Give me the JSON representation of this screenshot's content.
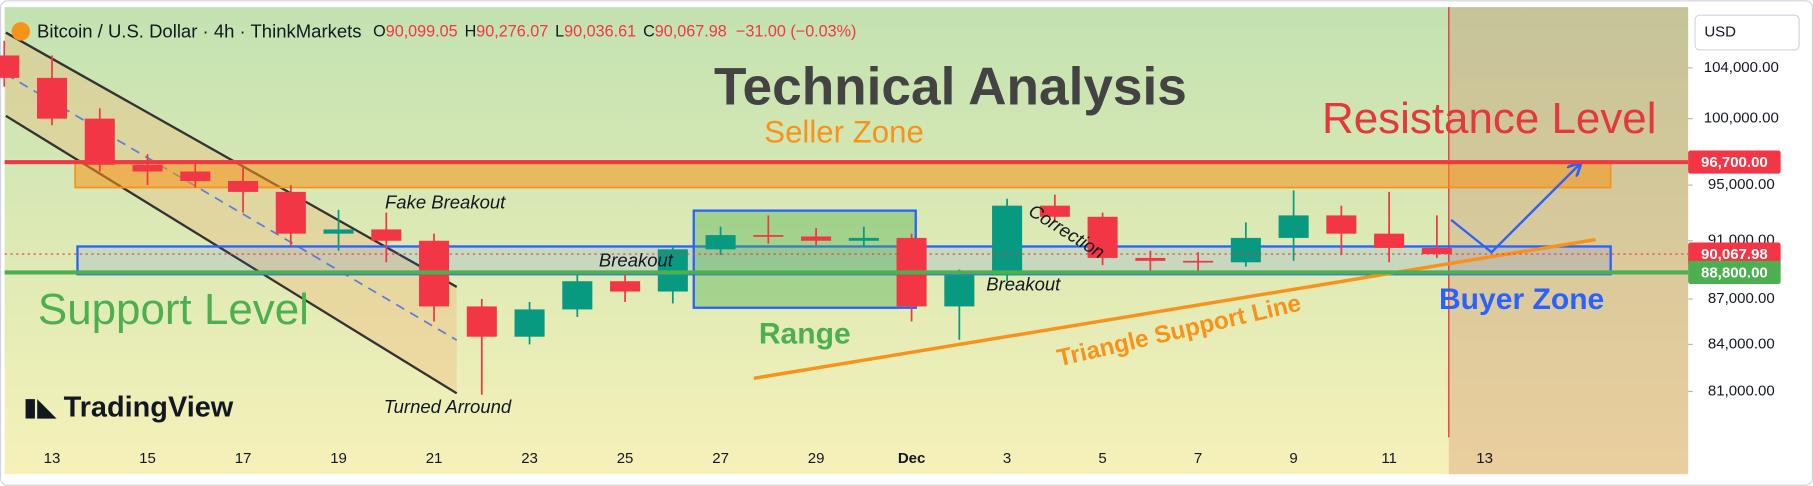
{
  "chart_data": {
    "type": "candlestick",
    "header": {
      "symbol": "Bitcoin / U.S. Dollar · 4h · ThinkMarkets",
      "ohlc": [
        {
          "key": "O",
          "value": "90,099.05"
        },
        {
          "key": "H",
          "value": "90,276.07"
        },
        {
          "key": "L",
          "value": "90,036.61"
        },
        {
          "key": "C",
          "value": "90,067.98"
        }
      ],
      "change": "−31.00 (−0.03%)"
    },
    "currency": "USD",
    "brand": "TradingView",
    "categories": [
      null,
      "13",
      null,
      "15",
      null,
      "17",
      null,
      "19",
      null,
      "21",
      null,
      "23",
      null,
      "25",
      null,
      "27",
      null,
      "29",
      null,
      "Dec",
      null,
      "3",
      null,
      "5",
      null,
      "7",
      null,
      "9",
      null,
      "11",
      null,
      "13",
      null,
      null,
      null,
      null
    ],
    "open": [
      105000,
      103200,
      100000,
      96500,
      96000,
      95300,
      94500,
      91500,
      91800,
      91000,
      86500,
      84500,
      86300,
      88200,
      87500,
      90400,
      91400,
      91300,
      91000,
      91200,
      86500,
      88600,
      93500,
      92700,
      89800,
      89600,
      89500,
      91200,
      92800,
      91500,
      90500,
      null,
      null,
      null,
      null,
      null
    ],
    "high": [
      106200,
      105000,
      100800,
      97300,
      96700,
      96300,
      95000,
      93200,
      93000,
      91500,
      87000,
      86800,
      88800,
      88900,
      90600,
      92000,
      92800,
      91900,
      92000,
      91500,
      89000,
      94000,
      94300,
      93000,
      90300,
      90200,
      92300,
      94600,
      93500,
      94500,
      92800,
      null,
      null,
      null,
      null,
      null
    ],
    "low": [
      102500,
      99500,
      96000,
      95000,
      94800,
      93000,
      90600,
      90300,
      89500,
      85500,
      80800,
      84000,
      85800,
      86800,
      86700,
      90000,
      90800,
      90700,
      90600,
      85500,
      84300,
      88200,
      92300,
      89300,
      88900,
      88700,
      89200,
      89600,
      90000,
      89500,
      89800,
      null,
      null,
      null,
      null,
      null
    ],
    "close": [
      103200,
      100000,
      96500,
      96000,
      95300,
      94500,
      91500,
      91800,
      91000,
      86500,
      84500,
      86300,
      88200,
      87500,
      90400,
      91400,
      91300,
      91000,
      91200,
      86500,
      88600,
      93500,
      92700,
      89800,
      89600,
      89500,
      91200,
      92800,
      91500,
      90500,
      90067.98,
      null,
      null,
      null,
      null,
      null
    ],
    "up_color": "#089981",
    "down_color": "#f23645",
    "log": true,
    "ylim": [
      77700,
      108800
    ],
    "yticks": [
      {
        "value": 104000,
        "label": "104,000.00"
      },
      {
        "value": 100000,
        "label": "100,000.00"
      },
      {
        "value": 95000,
        "label": "95,000.00"
      },
      {
        "value": 91000,
        "label": "91,000.00"
      },
      {
        "value": 87000,
        "label": "87,000.00"
      },
      {
        "value": 84000,
        "label": "84,000.00"
      },
      {
        "value": 81000,
        "label": "81,000.00"
      }
    ],
    "price_lines": [
      {
        "value": 96700,
        "label": "96,700.00",
        "color": "#f23645",
        "style": "solid"
      },
      {
        "value": 90067.98,
        "label": "90,067.98",
        "color": "#f23645",
        "style": "dotted"
      },
      {
        "value": 88800,
        "label": "88,800.00",
        "color": "#4caf50",
        "style": "solid"
      }
    ],
    "annotations": [
      "Technical Analysis",
      "Seller Zone",
      "Resistance Level",
      "Support Level",
      "Fake Breakout",
      "Breakout",
      "Range",
      "Breakout",
      "Correction",
      "Triangle Support Line",
      "Buyer Zone",
      "Turned Arround"
    ]
  }
}
